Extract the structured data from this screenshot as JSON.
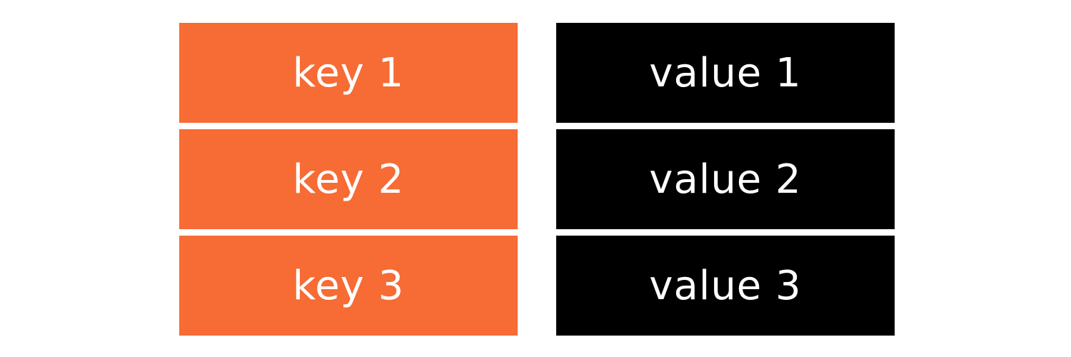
{
  "colors": {
    "key_bg": "#f76b34",
    "value_bg": "#000000",
    "text": "#ffffff"
  },
  "rows": [
    {
      "key": "key 1",
      "value": "value 1"
    },
    {
      "key": "key 2",
      "value": "value 2"
    },
    {
      "key": "key 3",
      "value": "value 3"
    }
  ]
}
